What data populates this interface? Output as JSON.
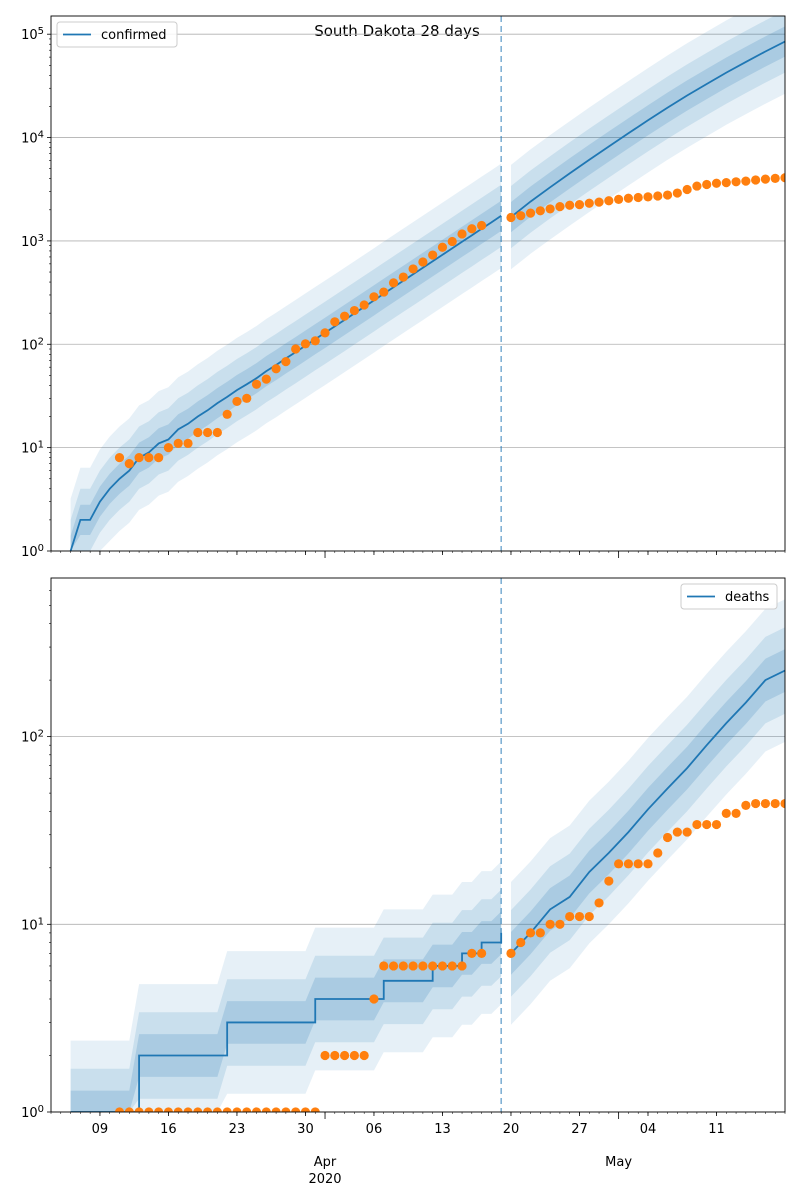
{
  "figure_title": "South Dakota 28 days",
  "colors": {
    "model_line": "#1f77b4",
    "observed_points": "#ff7f0e",
    "band": "#1f77b4",
    "forecast_divider": "#1f77b4",
    "grid": "#b0b0b0"
  },
  "chart_data": [
    {
      "type": "line",
      "panel": "confirmed",
      "title": "South Dakota 28 days",
      "yscale": "log",
      "ylim": [
        1,
        150000
      ],
      "xlim": [
        "2020-03-04",
        "2020-05-18"
      ],
      "legend": {
        "label": "confirmed",
        "placement": "top-left"
      },
      "forecast_start": "2020-04-19",
      "y_ticks": [
        {
          "value": 1,
          "label": "10^0"
        },
        {
          "value": 10,
          "label": "10^1"
        },
        {
          "value": 100,
          "label": "10^2"
        },
        {
          "value": 1000,
          "label": "10^3"
        },
        {
          "value": 10000,
          "label": "10^4"
        },
        {
          "value": 100000,
          "label": "10^5"
        }
      ],
      "model_fit": {
        "dates": [
          "03-06",
          "03-07",
          "03-08",
          "03-09",
          "03-10",
          "03-11",
          "03-12",
          "03-13",
          "03-14",
          "03-15",
          "03-16",
          "03-17",
          "03-18",
          "03-19",
          "03-20",
          "03-21",
          "03-22",
          "03-23",
          "03-24",
          "03-25",
          "03-26",
          "03-27",
          "03-28",
          "03-29",
          "03-30",
          "03-31",
          "04-01",
          "04-02",
          "04-03",
          "04-04",
          "04-05",
          "04-06",
          "04-07",
          "04-08",
          "04-09",
          "04-10",
          "04-11",
          "04-12",
          "04-13",
          "04-14",
          "04-15",
          "04-16",
          "04-17",
          "04-18",
          "04-19"
        ],
        "values": [
          1,
          2,
          2,
          3,
          4,
          5,
          6,
          8,
          9,
          11,
          12,
          15,
          17,
          20,
          23,
          27,
          31,
          36,
          41,
          47,
          55,
          63,
          73,
          84,
          97,
          112,
          129,
          149,
          172,
          199,
          230,
          266,
          308,
          356,
          411,
          475,
          549,
          635,
          734,
          848,
          980,
          1130,
          1310,
          1510,
          1750
        ]
      },
      "observed": {
        "dates": [
          "03-11",
          "03-12",
          "03-13",
          "03-14",
          "03-15",
          "03-16",
          "03-17",
          "03-18",
          "03-19",
          "03-20",
          "03-21",
          "03-22",
          "03-23",
          "03-24",
          "03-25",
          "03-26",
          "03-27",
          "03-28",
          "03-29",
          "03-30",
          "03-31",
          "04-01",
          "04-02",
          "04-03",
          "04-04",
          "04-05",
          "04-06",
          "04-07",
          "04-08",
          "04-09",
          "04-10",
          "04-11",
          "04-12",
          "04-13",
          "04-14",
          "04-15",
          "04-16",
          "04-17",
          "04-20",
          "04-21",
          "04-22",
          "04-23",
          "04-24",
          "04-25",
          "04-26",
          "04-27",
          "04-28",
          "04-29",
          "04-30",
          "05-01",
          "05-02",
          "05-03",
          "05-04",
          "05-05",
          "05-06",
          "05-07",
          "05-08",
          "05-09",
          "05-10",
          "05-11",
          "05-12",
          "05-13",
          "05-14",
          "05-15",
          "05-16",
          "05-17",
          "05-18"
        ],
        "values": [
          8,
          7,
          8,
          8,
          8,
          10,
          11,
          11,
          14,
          14,
          14,
          21,
          28,
          30,
          41,
          46,
          58,
          68,
          90,
          101,
          108,
          129,
          165,
          187,
          212,
          240,
          288,
          320,
          393,
          447,
          536,
          626,
          730,
          868,
          988,
          1168,
          1311,
          1411,
          1685,
          1755,
          1858,
          1956,
          2040,
          2147,
          2212,
          2245,
          2313,
          2373,
          2449,
          2525,
          2588,
          2631,
          2668,
          2721,
          2779,
          2905,
          3144,
          3393,
          3517,
          3614,
          3663,
          3732,
          3792,
          3887,
          3959,
          4027,
          4085
        ]
      },
      "forecast": {
        "dates": [
          "04-20",
          "04-22",
          "04-24",
          "04-26",
          "04-28",
          "04-30",
          "05-02",
          "05-04",
          "05-06",
          "05-08",
          "05-10",
          "05-12",
          "05-14",
          "05-16",
          "05-18"
        ],
        "values": [
          1700,
          2400,
          3300,
          4500,
          6100,
          8200,
          11000,
          14700,
          19500,
          25500,
          33000,
          42500,
          54000,
          68000,
          85000
        ]
      }
    },
    {
      "type": "line",
      "panel": "deaths",
      "yscale": "log",
      "ylim": [
        1,
        700
      ],
      "xlim": [
        "2020-03-04",
        "2020-05-18"
      ],
      "legend": {
        "label": "deaths",
        "placement": "top-right"
      },
      "forecast_start": "2020-04-19",
      "y_ticks": [
        {
          "value": 1,
          "label": "10^0"
        },
        {
          "value": 10,
          "label": "10^1"
        },
        {
          "value": 100,
          "label": "10^2"
        }
      ],
      "model_fit": {
        "dates": [
          "03-06",
          "03-12",
          "03-13",
          "03-21",
          "03-22",
          "03-30",
          "03-31",
          "04-06",
          "04-07",
          "04-11",
          "04-12",
          "04-14",
          "04-15",
          "04-16",
          "04-17",
          "04-18",
          "04-19"
        ],
        "values": [
          1,
          1,
          2,
          2,
          3,
          3,
          4,
          4,
          5,
          5,
          6,
          6,
          7,
          7,
          8,
          8,
          9
        ]
      },
      "observed": {
        "dates": [
          "03-11",
          "03-12",
          "03-13",
          "03-14",
          "03-15",
          "03-16",
          "03-17",
          "03-18",
          "03-19",
          "03-20",
          "03-21",
          "03-22",
          "03-23",
          "03-24",
          "03-25",
          "03-26",
          "03-27",
          "03-28",
          "03-29",
          "03-30",
          "03-31",
          "04-01",
          "04-02",
          "04-03",
          "04-04",
          "04-05",
          "04-06",
          "04-07",
          "04-08",
          "04-09",
          "04-10",
          "04-11",
          "04-12",
          "04-13",
          "04-14",
          "04-15",
          "04-16",
          "04-17",
          "04-20",
          "04-21",
          "04-22",
          "04-23",
          "04-24",
          "04-25",
          "04-26",
          "04-27",
          "04-28",
          "04-29",
          "04-30",
          "05-01",
          "05-02",
          "05-03",
          "05-04",
          "05-05",
          "05-06",
          "05-07",
          "05-08",
          "05-09",
          "05-10",
          "05-11",
          "05-12",
          "05-13",
          "05-14",
          "05-15",
          "05-16",
          "05-17",
          "05-18"
        ],
        "values": [
          1,
          1,
          1,
          1,
          1,
          1,
          1,
          1,
          1,
          1,
          1,
          1,
          1,
          1,
          1,
          1,
          1,
          1,
          1,
          1,
          1,
          2,
          2,
          2,
          2,
          2,
          4,
          6,
          6,
          6,
          6,
          6,
          6,
          6,
          6,
          6,
          7,
          7,
          7,
          8,
          9,
          9,
          10,
          10,
          11,
          11,
          11,
          13,
          17,
          21,
          21,
          21,
          21,
          24,
          29,
          31,
          31,
          34,
          34,
          34,
          39,
          39,
          43,
          44,
          44,
          44,
          44
        ]
      },
      "forecast": {
        "dates": [
          "04-20",
          "04-22",
          "04-24",
          "04-26",
          "04-28",
          "04-30",
          "05-02",
          "05-04",
          "05-06",
          "05-08",
          "05-10",
          "05-12",
          "05-14",
          "05-16",
          "05-18"
        ],
        "values": [
          7,
          9,
          12,
          14,
          19,
          24,
          31,
          41,
          53,
          68,
          90,
          118,
          152,
          200,
          225
        ]
      }
    }
  ],
  "x_axis": {
    "minor_ticks": [
      {
        "date": "03-09",
        "label": "09"
      },
      {
        "date": "03-16",
        "label": "16"
      },
      {
        "date": "03-23",
        "label": "23"
      },
      {
        "date": "03-30",
        "label": "30"
      },
      {
        "date": "04-06",
        "label": "06"
      },
      {
        "date": "04-13",
        "label": "13"
      },
      {
        "date": "04-20",
        "label": "20"
      },
      {
        "date": "04-27",
        "label": "27"
      },
      {
        "date": "05-04",
        "label": "04"
      },
      {
        "date": "05-11",
        "label": "11"
      }
    ],
    "month_labels": [
      {
        "date": "04-01",
        "label": "Apr",
        "sublabel": "2020"
      },
      {
        "date": "05-01",
        "label": "May",
        "sublabel": ""
      }
    ]
  }
}
